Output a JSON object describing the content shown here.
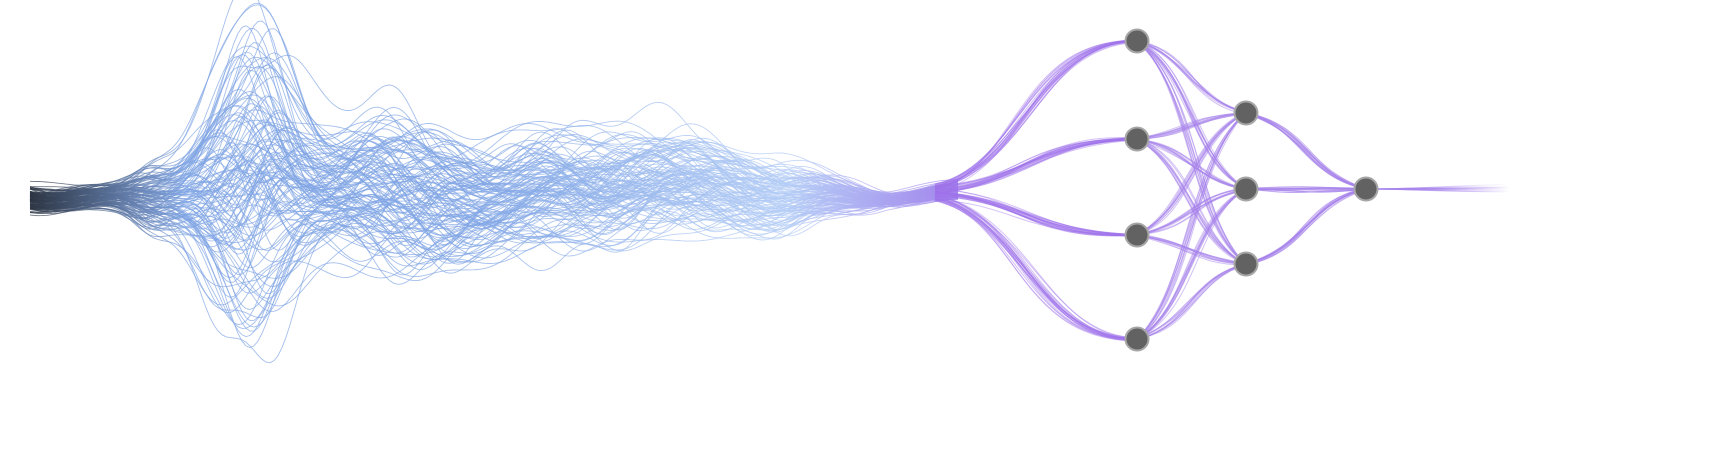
{
  "colors": {
    "background": "#ffffff",
    "stream_start": "#2b3442",
    "stream_blue": "#7fa4e4",
    "stream_light": "#b4cdf6",
    "stream_purple": "#9f74ea",
    "edge_purple": "#a784ec",
    "node_fill": "#626262",
    "node_stroke": "#a6a6a6"
  },
  "network": {
    "layers": [
      {
        "nodes": 4
      },
      {
        "nodes": 3
      },
      {
        "nodes": 1
      }
    ],
    "inputs": "stream",
    "output": "stream"
  }
}
